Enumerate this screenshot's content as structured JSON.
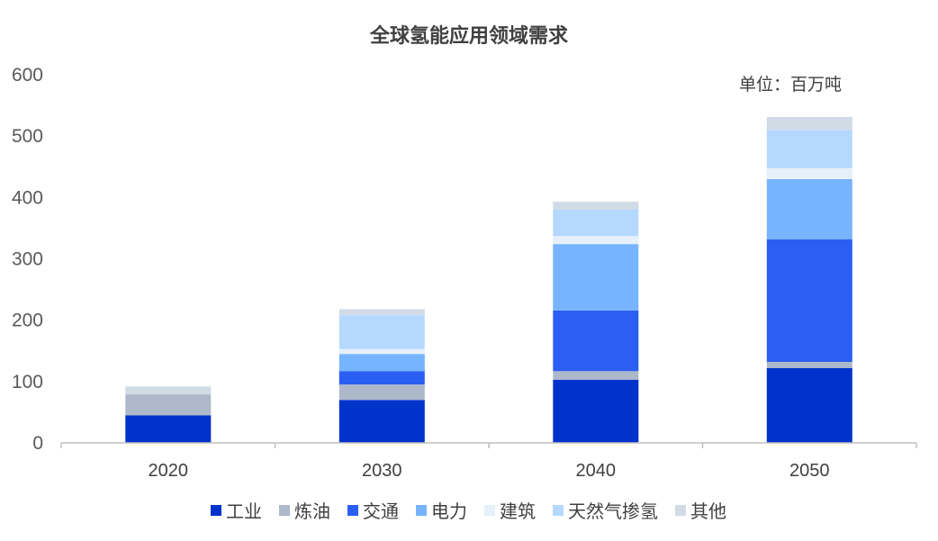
{
  "chart_data": {
    "type": "bar",
    "stacked": true,
    "title": "全球氢能应用领域需求",
    "unit_label": "单位：百万吨",
    "xlabel": "",
    "ylabel": "",
    "ylim": [
      0,
      600
    ],
    "yticks": [
      0,
      100,
      200,
      300,
      400,
      500,
      600
    ],
    "categories": [
      "2020",
      "2030",
      "2040",
      "2050"
    ],
    "grid": false,
    "legend_position": "bottom",
    "series": [
      {
        "name": "工业",
        "color": "#0033CC",
        "values": [
          45,
          70,
          103,
          122
        ]
      },
      {
        "name": "炼油",
        "color": "#ADB9CA",
        "values": [
          34,
          25,
          14,
          10
        ]
      },
      {
        "name": "交通",
        "color": "#2B5EF2",
        "values": [
          0,
          22,
          99,
          200
        ]
      },
      {
        "name": "电力",
        "color": "#76B4FF",
        "values": [
          0,
          28,
          108,
          98
        ]
      },
      {
        "name": "建筑",
        "color": "#E6F0FA",
        "values": [
          0,
          8,
          13,
          18
        ]
      },
      {
        "name": "天然气掺氢",
        "color": "#B5D8FF",
        "values": [
          0,
          55,
          43,
          62
        ]
      },
      {
        "name": "其他",
        "color": "#D1DBE6",
        "values": [
          13,
          10,
          13,
          21
        ]
      }
    ]
  }
}
